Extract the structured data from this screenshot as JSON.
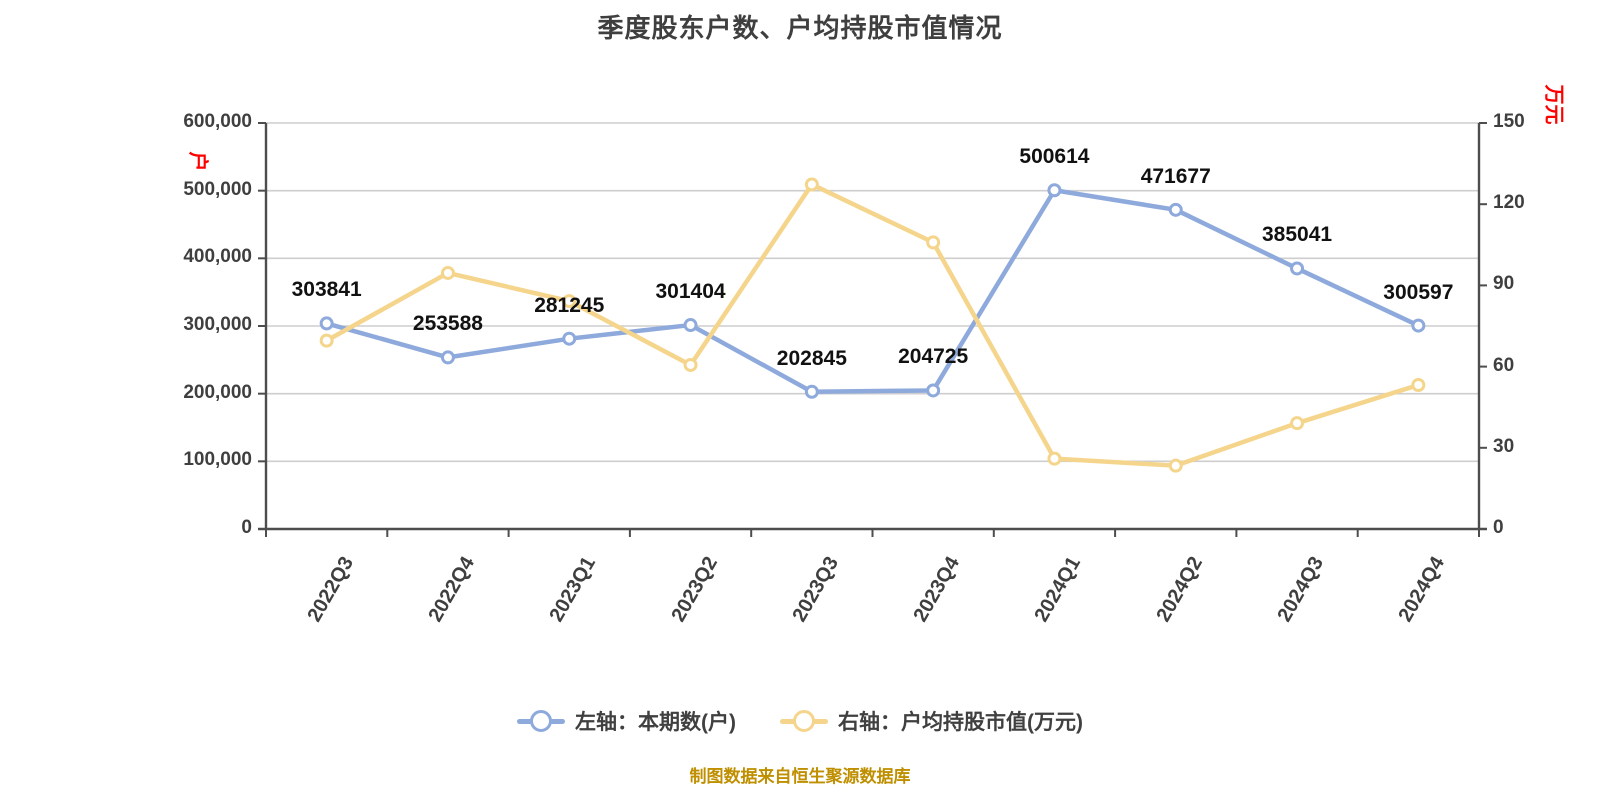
{
  "title": "季度股东户数、户均持股市值情况",
  "source_note": "制图数据来自恒生聚源数据库",
  "left_axis": {
    "unit": "户",
    "tick_labels": [
      "600,000",
      "500,000",
      "400,000",
      "300,000",
      "200,000",
      "100,000",
      "0"
    ],
    "max": 600000,
    "min": 0
  },
  "right_axis": {
    "unit": "万元",
    "tick_labels": [
      "150",
      "120",
      "90",
      "60",
      "30",
      "0"
    ],
    "max": 150,
    "min": 0
  },
  "legend": {
    "items": [
      {
        "label": "左轴：本期数(户)",
        "color": "#8EA9DB"
      },
      {
        "label": "右轴：户均持股市值(万元)",
        "color": "#F5D58C"
      }
    ]
  },
  "colors": {
    "blue_series": "#8EA9DB",
    "yellow_series": "#F5D58C",
    "grid_line": "#CFCECE",
    "axis_line": "#4d4d4d",
    "title_text": "#3f3f3f",
    "data_label": "#111111",
    "axis_unit_red": "#ff0000",
    "source_text": "#bf8f00",
    "marker_fill": "#ffffff"
  },
  "chart_data": {
    "type": "line",
    "categories": [
      "2022Q3",
      "2022Q4",
      "2023Q1",
      "2023Q2",
      "2023Q3",
      "2023Q4",
      "2024Q1",
      "2024Q2",
      "2024Q3",
      "2024Q4"
    ],
    "series": [
      {
        "name": "左轴：本期数(户)",
        "axis": "left",
        "color": "#8EA9DB",
        "values": [
          303841,
          253588,
          281245,
          301404,
          202845,
          204725,
          500614,
          471677,
          385041,
          300597
        ],
        "data_labels": [
          "303841",
          "253588",
          "281245",
          "301404",
          "202845",
          "204725",
          "500614",
          "471677",
          "385041",
          "300597"
        ],
        "labels_shown": true
      },
      {
        "name": "右轴：户均持股市值(万元)",
        "axis": "right",
        "color": "#F5D58C",
        "values": [
          69.6,
          94.6,
          84.2,
          60.6,
          127.3,
          105.9,
          26.0,
          23.4,
          39.1,
          53.2
        ],
        "labels_shown": false
      }
    ],
    "left_ylim": [
      0,
      600000
    ],
    "right_ylim": [
      0,
      150
    ],
    "grid": true,
    "legend_position": "bottom"
  }
}
